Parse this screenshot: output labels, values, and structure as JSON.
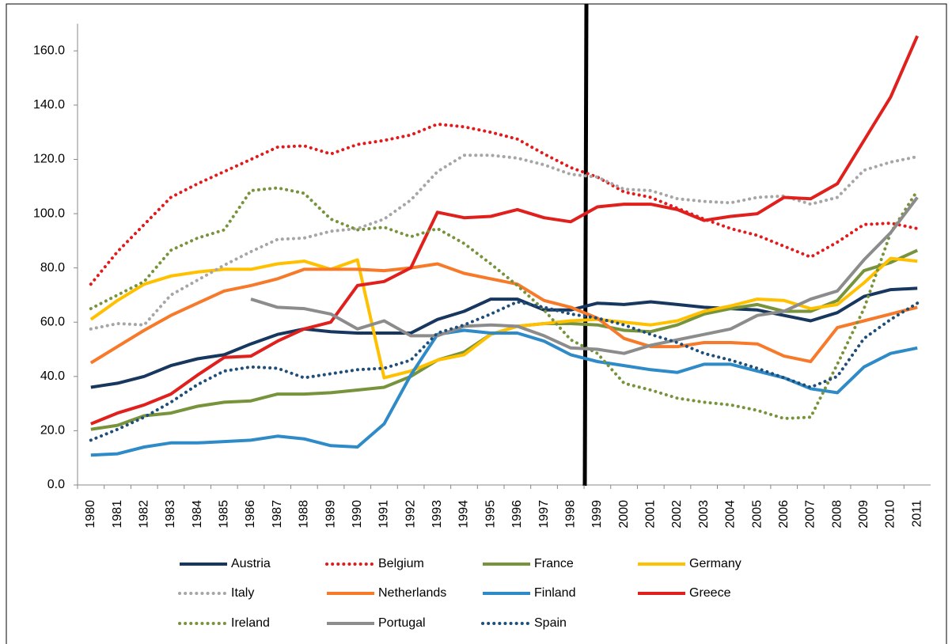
{
  "chart_data": {
    "type": "line",
    "categories": [
      "1980",
      "1981",
      "1982",
      "1983",
      "1984",
      "1985",
      "1986",
      "1987",
      "1988",
      "1989",
      "1990",
      "1991",
      "1992",
      "1993",
      "1994",
      "1995",
      "1996",
      "1997",
      "1998",
      "1999",
      "2000",
      "2001",
      "2002",
      "2003",
      "2004",
      "2005",
      "2006",
      "2007",
      "2008",
      "2009",
      "2010",
      "2011"
    ],
    "ylim": [
      0,
      170
    ],
    "yticks": [
      {
        "value": 0,
        "label": "0.0"
      },
      {
        "value": 20,
        "label": "20.0"
      },
      {
        "value": 40,
        "label": "40.0"
      },
      {
        "value": 60,
        "label": "60.0"
      },
      {
        "value": 80,
        "label": "80.0"
      },
      {
        "value": 100,
        "label": "100.0"
      },
      {
        "value": 120,
        "label": "120.0"
      },
      {
        "value": 140,
        "label": "140.0"
      },
      {
        "value": 160,
        "label": "160.0"
      }
    ],
    "grid": false,
    "series": [
      {
        "name": "Austria",
        "color": "#17375e",
        "style": "solid",
        "values": [
          36,
          37.5,
          40,
          44,
          46.5,
          48,
          52,
          55.5,
          57.5,
          56.5,
          56,
          56,
          56,
          61,
          64,
          68.5,
          68.5,
          64.5,
          64.5,
          67,
          66.5,
          67.5,
          66.5,
          65.5,
          65,
          64.5,
          62.5,
          60.5,
          63.5,
          69.5,
          72,
          72.5
        ]
      },
      {
        "name": "Belgium",
        "color": "#e31a1c",
        "style": "dotted",
        "values": [
          74,
          86,
          96,
          106,
          111,
          115.5,
          120,
          124.5,
          125,
          122,
          125.5,
          127,
          129,
          133,
          132,
          130,
          127.5,
          122,
          117,
          113.5,
          108,
          106,
          102,
          98,
          94.5,
          92,
          88,
          84,
          89.5,
          96,
          96.5,
          94.5
        ]
      },
      {
        "name": "France",
        "color": "#77933c",
        "style": "solid",
        "values": [
          20.5,
          22,
          25.5,
          26.5,
          29,
          30.5,
          31,
          33.5,
          33.5,
          34,
          35,
          36,
          40,
          46,
          49,
          55.5,
          58.5,
          59.5,
          59.5,
          59,
          57,
          56.5,
          59,
          63,
          65,
          66.5,
          64,
          64,
          68,
          79,
          82,
          86.5
        ]
      },
      {
        "name": "Germany",
        "color": "#ffc000",
        "style": "solid",
        "values": [
          61,
          68,
          74,
          77,
          78.5,
          79.5,
          79.5,
          81.5,
          82.5,
          79.5,
          83,
          39.5,
          42,
          46,
          48,
          55.5,
          58.5,
          59.5,
          60.5,
          61,
          60,
          59,
          60.5,
          64,
          66,
          68.5,
          68,
          65,
          66.5,
          74.5,
          83.5,
          82.5
        ]
      },
      {
        "name": "Italy",
        "color": "#a6a6a6",
        "style": "dotted",
        "values": [
          57.5,
          59.5,
          59,
          70,
          75.5,
          81,
          86,
          90.5,
          91,
          93.5,
          94.5,
          98,
          105,
          115.5,
          121.5,
          121.5,
          120.5,
          118,
          114.5,
          113.5,
          109,
          108.5,
          105.5,
          104.5,
          104,
          106,
          106.5,
          103.5,
          106,
          116,
          119,
          121
        ]
      },
      {
        "name": "Netherlands",
        "color": "#f7792a",
        "style": "solid",
        "values": [
          45,
          51,
          57,
          62.5,
          67,
          71.5,
          73.5,
          76,
          79.5,
          79.5,
          79.5,
          79,
          80,
          81.5,
          78,
          76,
          74,
          68,
          65.5,
          61.5,
          54,
          51,
          51,
          52.5,
          52.5,
          52,
          47.5,
          45.5,
          58,
          60.5,
          63,
          65.5
        ]
      },
      {
        "name": "Finland",
        "color": "#2e8bc8",
        "style": "solid",
        "values": [
          11,
          11.5,
          14,
          15.5,
          15.5,
          16,
          16.5,
          18,
          17,
          14.5,
          14,
          22.5,
          40.5,
          55.5,
          57,
          56,
          56,
          53,
          48,
          45.5,
          44,
          42.5,
          41.5,
          44.5,
          44.5,
          42,
          39.5,
          35.5,
          34,
          43.5,
          48.5,
          50.5
        ]
      },
      {
        "name": "Greece",
        "color": "#e0201c",
        "style": "solid",
        "values": [
          22.5,
          26.5,
          29.5,
          33.5,
          40.5,
          47,
          47.5,
          53,
          57.5,
          60,
          73.5,
          75,
          80,
          100.5,
          98.5,
          99,
          101.5,
          98.5,
          97,
          102.5,
          103.5,
          103.5,
          101.5,
          97.5,
          99,
          100,
          106,
          105.5,
          111,
          127,
          143,
          165.5
        ]
      },
      {
        "name": "Ireland",
        "color": "#77933c",
        "style": "dotted",
        "values": [
          65,
          70,
          75,
          86.5,
          91,
          94,
          108.5,
          109.5,
          107.5,
          98,
          94,
          95,
          91.5,
          94.5,
          89,
          81.5,
          73.5,
          64.5,
          53.5,
          48.5,
          37.5,
          35,
          32,
          30.5,
          29.5,
          27.5,
          24.5,
          25,
          44.5,
          65,
          93,
          108.5
        ]
      },
      {
        "name": "Portugal",
        "color": "#8c8c8c",
        "style": "solid",
        "values": [
          null,
          null,
          null,
          null,
          null,
          null,
          68.5,
          65.5,
          65,
          63,
          57.5,
          60.5,
          55,
          55,
          58.5,
          59,
          58.5,
          55,
          50.5,
          50,
          48.5,
          51.5,
          53.5,
          55.5,
          57.5,
          62.5,
          64,
          68.5,
          71.5,
          83,
          93,
          106
        ]
      },
      {
        "name": "Spain",
        "color": "#1f4e79",
        "style": "dotted",
        "values": [
          16.5,
          20.5,
          25,
          30.5,
          37,
          42,
          43.5,
          43,
          39.5,
          41,
          42.5,
          43,
          46,
          56,
          59,
          63,
          67.5,
          65.5,
          63,
          61.5,
          59,
          55.5,
          52.5,
          48.5,
          46,
          43,
          39.5,
          36,
          40,
          54,
          61,
          67
        ]
      }
    ]
  }
}
